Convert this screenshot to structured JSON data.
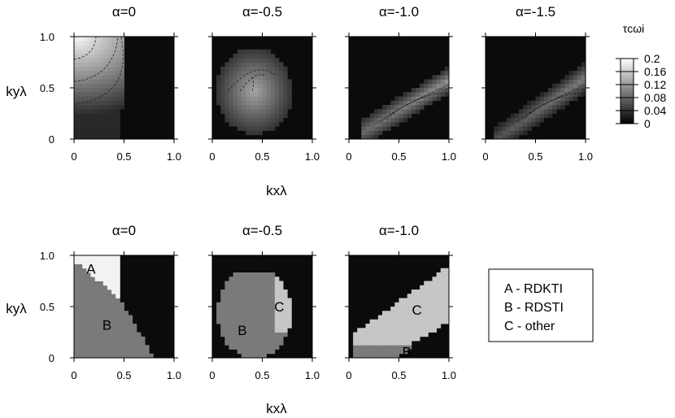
{
  "colorbar": {
    "title": "τcωi",
    "ticks": [
      "0.2",
      "0.16",
      "0.12",
      "0.08",
      "0.04",
      "0"
    ],
    "values": [
      0.2,
      0.16,
      0.12,
      0.08,
      0.04,
      0
    ]
  },
  "labels": {
    "ky": "kyλ",
    "kx": "kxλ"
  },
  "x_ticks": [
    "0",
    "0.5",
    "1.0"
  ],
  "y_ticks": [
    "0",
    "0.5",
    "1.0"
  ],
  "legend": {
    "items": [
      "A - RDKTI",
      "B - RDSTI",
      "C - other"
    ]
  },
  "colors": {
    "background": "#ffffff",
    "stable": "#0b0b0b",
    "region_A": "#f2f2f2",
    "region_B": "#7a7a7a",
    "region_C": "#c6c6c6"
  },
  "chart_data": [
    {
      "type": "heatmap",
      "title": "α=0",
      "xlabel": "kxλ",
      "ylabel": "kyλ",
      "xlim": [
        0,
        1
      ],
      "ylim": [
        0,
        1
      ],
      "quantity": "τcωi",
      "zlim": [
        0,
        0.2
      ],
      "unstable_boundary": [
        [
          0,
          0
        ],
        [
          0.5,
          0
        ],
        [
          0.55,
          0.4
        ],
        [
          0.5,
          0.68
        ],
        [
          0.5,
          1.0
        ],
        [
          0,
          1.0
        ]
      ],
      "peak": {
        "kx": 0.05,
        "ky": 0.95,
        "value": 0.2
      }
    },
    {
      "type": "heatmap",
      "title": "α=-0.5",
      "xlabel": "kxλ",
      "ylabel": "kyλ",
      "xlim": [
        0,
        1
      ],
      "ylim": [
        0,
        1
      ],
      "quantity": "τcωi",
      "zlim": [
        0,
        0.2
      ],
      "unstable_boundary": [
        [
          0.05,
          0
        ],
        [
          0.5,
          0
        ],
        [
          0.75,
          0.2
        ],
        [
          0.78,
          0.5
        ],
        [
          0.76,
          0.85
        ],
        [
          0.2,
          0.75
        ],
        [
          0.05,
          0.5
        ]
      ],
      "peak": {
        "kx": 0.45,
        "ky": 0.6,
        "value": 0.1
      }
    },
    {
      "type": "heatmap",
      "title": "α=-1.0",
      "xlabel": "kxλ",
      "ylabel": "kyλ",
      "xlim": [
        0,
        1
      ],
      "ylim": [
        0,
        1
      ],
      "quantity": "τcωi",
      "zlim": [
        0,
        0.2
      ],
      "unstable_boundary": [
        [
          0.2,
          0
        ],
        [
          1.0,
          0
        ],
        [
          1.0,
          0.15
        ],
        [
          1.0,
          0.7
        ],
        [
          0.15,
          0.2
        ]
      ],
      "peak": {
        "kx": 0.65,
        "ky": 0.55,
        "value": 0.06
      }
    },
    {
      "type": "heatmap",
      "title": "α=-1.5",
      "xlabel": "kxλ",
      "ylabel": "kyλ",
      "xlim": [
        0,
        1
      ],
      "ylim": [
        0,
        1
      ],
      "quantity": "τcωi",
      "zlim": [
        0,
        0.2
      ],
      "unstable_boundary": [
        [
          0.1,
          0
        ],
        [
          1.0,
          0
        ],
        [
          1.0,
          0.72
        ],
        [
          0.1,
          0.1
        ]
      ],
      "peak": {
        "kx": 0.75,
        "ky": 0.55,
        "value": 0.05
      }
    },
    {
      "type": "heatmap",
      "title": "α=0",
      "xlabel": "kxλ",
      "ylabel": "kyλ",
      "xlim": [
        0,
        1
      ],
      "ylim": [
        0,
        1
      ],
      "regions": [
        {
          "label": "A",
          "name": "RDKTI",
          "center": [
            0.17,
            0.87
          ]
        },
        {
          "label": "B",
          "name": "RDSTI",
          "center": [
            0.33,
            0.32
          ]
        }
      ]
    },
    {
      "type": "heatmap",
      "title": "α=-0.5",
      "xlabel": "kxλ",
      "ylabel": "kyλ",
      "xlim": [
        0,
        1
      ],
      "ylim": [
        0,
        1
      ],
      "regions": [
        {
          "label": "B",
          "name": "RDSTI",
          "center": [
            0.3,
            0.27
          ]
        },
        {
          "label": "C",
          "name": "other",
          "center": [
            0.67,
            0.5
          ]
        }
      ]
    },
    {
      "type": "heatmap",
      "title": "α=-1.0",
      "xlabel": "kxλ",
      "ylabel": "kyλ",
      "xlim": [
        0,
        1
      ],
      "ylim": [
        0,
        1
      ],
      "regions": [
        {
          "label": "C",
          "name": "other",
          "center": [
            0.68,
            0.47
          ]
        },
        {
          "label": "B",
          "name": "RDSTI",
          "center": [
            0.58,
            0.06
          ]
        }
      ]
    }
  ]
}
